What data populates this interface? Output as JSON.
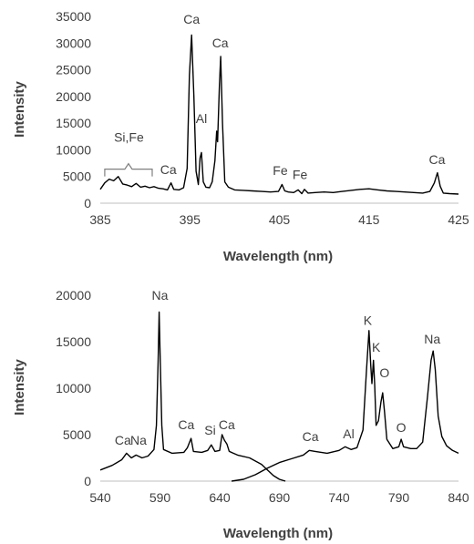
{
  "chart_data": [
    {
      "type": "line",
      "title": "",
      "xlabel": "Wavelength (nm)",
      "ylabel": "Intensity",
      "xlim": [
        385,
        425
      ],
      "ylim": [
        0,
        35000
      ],
      "xticks": [
        "385",
        "395",
        "405",
        "415",
        "425"
      ],
      "yticks": [
        "0",
        "5000",
        "10000",
        "15000",
        "20000",
        "25000",
        "30000",
        "35000"
      ],
      "grid": false,
      "series": [
        {
          "points": [
            [
              385,
              2600
            ],
            [
              385.5,
              3800
            ],
            [
              386,
              4500
            ],
            [
              386.5,
              4200
            ],
            [
              387,
              5000
            ],
            [
              387.5,
              3600
            ],
            [
              388,
              3400
            ],
            [
              388.5,
              3100
            ],
            [
              389,
              3700
            ],
            [
              389.5,
              3000
            ],
            [
              390,
              3200
            ],
            [
              390.5,
              2900
            ],
            [
              391,
              3100
            ],
            [
              391.5,
              2800
            ],
            [
              392,
              2700
            ],
            [
              392.5,
              2500
            ],
            [
              392.9,
              3800
            ],
            [
              393.2,
              2600
            ],
            [
              393.8,
              2500
            ],
            [
              394.3,
              2900
            ],
            [
              394.7,
              6500
            ],
            [
              394.95,
              24000
            ],
            [
              395.2,
              31500
            ],
            [
              395.45,
              20000
            ],
            [
              395.7,
              6000
            ],
            [
              395.95,
              3500
            ],
            [
              396.15,
              8500
            ],
            [
              396.3,
              9500
            ],
            [
              396.5,
              4000
            ],
            [
              396.8,
              3000
            ],
            [
              397.2,
              2900
            ],
            [
              397.5,
              4000
            ],
            [
              397.8,
              8000
            ],
            [
              398.0,
              13500
            ],
            [
              398.1,
              11500
            ],
            [
              398.3,
              22000
            ],
            [
              398.45,
              27500
            ],
            [
              398.65,
              15000
            ],
            [
              398.9,
              4000
            ],
            [
              399.3,
              3000
            ],
            [
              400,
              2500
            ],
            [
              401,
              2400
            ],
            [
              402,
              2300
            ],
            [
              403,
              2200
            ],
            [
              404,
              2100
            ],
            [
              404.9,
              2200
            ],
            [
              405.3,
              3500
            ],
            [
              405.6,
              2300
            ],
            [
              406,
              2100
            ],
            [
              406.6,
              2000
            ],
            [
              407.1,
              2500
            ],
            [
              407.5,
              1800
            ],
            [
              407.8,
              2600
            ],
            [
              408.2,
              1900
            ],
            [
              409,
              2000
            ],
            [
              410,
              2100
            ],
            [
              411,
              2000
            ],
            [
              412,
              2200
            ],
            [
              413,
              2400
            ],
            [
              414,
              2600
            ],
            [
              415,
              2700
            ],
            [
              416,
              2500
            ],
            [
              417,
              2300
            ],
            [
              418,
              2200
            ],
            [
              419,
              2100
            ],
            [
              420,
              2000
            ],
            [
              421,
              1900
            ],
            [
              421.8,
              2200
            ],
            [
              422.3,
              3800
            ],
            [
              422.65,
              5700
            ],
            [
              422.95,
              3200
            ],
            [
              423.3,
              1900
            ],
            [
              424,
              1800
            ],
            [
              425,
              1700
            ]
          ]
        }
      ],
      "annotations": [
        {
          "text": "Si,Fe",
          "x": 388.2,
          "y": 11500,
          "bracket": [
            385.5,
            390.8
          ]
        },
        {
          "text": "Ca",
          "x": 392.6,
          "y": 5500
        },
        {
          "text": "Ca",
          "x": 395.2,
          "y": 33600
        },
        {
          "text": "Al",
          "x": 396.3,
          "y": 15000
        },
        {
          "text": "Ca",
          "x": 398.4,
          "y": 29200
        },
        {
          "text": "Fe",
          "x": 405.1,
          "y": 5300
        },
        {
          "text": "Fe",
          "x": 407.3,
          "y": 4500
        },
        {
          "text": "Ca",
          "x": 422.6,
          "y": 7300
        }
      ]
    },
    {
      "type": "line",
      "title": "",
      "xlabel": "Wavelength (nm)",
      "ylabel": "Intensity",
      "xlim": [
        540,
        840
      ],
      "ylim": [
        0,
        20000
      ],
      "xticks": [
        "540",
        "590",
        "640",
        "690",
        "740",
        "790",
        "840"
      ],
      "yticks": [
        "0",
        "5000",
        "10000",
        "15000",
        "20000"
      ],
      "grid": false,
      "series": [
        {
          "points": [
            [
              540,
              1200
            ],
            [
              550,
              1700
            ],
            [
              558,
              2300
            ],
            [
              562,
              3000
            ],
            [
              566,
              2500
            ],
            [
              570,
              2800
            ],
            [
              575,
              2500
            ],
            [
              580,
              2700
            ],
            [
              585,
              3400
            ],
            [
              587,
              6000
            ],
            [
              588.5,
              13000
            ],
            [
              589.3,
              18200
            ],
            [
              590.2,
              13000
            ],
            [
              591.5,
              6000
            ],
            [
              593,
              3400
            ],
            [
              600,
              3000
            ],
            [
              610,
              3100
            ],
            [
              613,
              3600
            ],
            [
              616,
              4600
            ],
            [
              618,
              3200
            ],
            [
              625,
              3100
            ],
            [
              630,
              3300
            ],
            [
              633,
              3900
            ],
            [
              636,
              3200
            ],
            [
              640,
              3300
            ],
            [
              642,
              5000
            ],
            [
              644,
              4400
            ],
            [
              646,
              4000
            ],
            [
              648,
              3200
            ],
            [
              655,
              2800
            ],
            [
              665,
              2500
            ],
            [
              675,
              1800
            ],
            [
              685,
              600
            ],
            [
              690,
              200
            ],
            [
              695,
              0
            ]
          ]
        },
        {
          "points": [
            [
              650,
              0
            ],
            [
              660,
              200
            ],
            [
              670,
              700
            ],
            [
              680,
              1400
            ],
            [
              690,
              2000
            ],
            [
              700,
              2400
            ],
            [
              710,
              2800
            ],
            [
              715,
              3300
            ],
            [
              720,
              3200
            ],
            [
              730,
              3000
            ],
            [
              740,
              3300
            ],
            [
              745,
              3700
            ],
            [
              750,
              3400
            ],
            [
              755,
              3600
            ],
            [
              760,
              5500
            ],
            [
              763,
              12000
            ],
            [
              765,
              16200
            ],
            [
              766.5,
              12500
            ],
            [
              767.5,
              10500
            ],
            [
              768.8,
              13000
            ],
            [
              769.8,
              10500
            ],
            [
              771,
              6000
            ],
            [
              773,
              6500
            ],
            [
              775,
              8500
            ],
            [
              776.5,
              9500
            ],
            [
              778,
              7500
            ],
            [
              780,
              4500
            ],
            [
              785,
              3500
            ],
            [
              790,
              3700
            ],
            [
              792,
              4500
            ],
            [
              794,
              3700
            ],
            [
              800,
              3500
            ],
            [
              805,
              3500
            ],
            [
              810,
              4200
            ],
            [
              814,
              9000
            ],
            [
              817,
              13000
            ],
            [
              818.8,
              14000
            ],
            [
              820.5,
              12000
            ],
            [
              823,
              7000
            ],
            [
              826,
              4800
            ],
            [
              830,
              3800
            ],
            [
              835,
              3300
            ],
            [
              840,
              3000
            ]
          ]
        }
      ],
      "annotations": [
        {
          "text": "Ca",
          "x": 559,
          "y": 3900
        },
        {
          "text": "Na",
          "x": 572,
          "y": 3900
        },
        {
          "text": "Na",
          "x": 590,
          "y": 19500
        },
        {
          "text": "Ca",
          "x": 612,
          "y": 5600
        },
        {
          "text": "Si",
          "x": 632,
          "y": 5000
        },
        {
          "text": "Ca",
          "x": 646,
          "y": 5600
        },
        {
          "text": "Ca",
          "x": 716,
          "y": 4300
        },
        {
          "text": "Al",
          "x": 748,
          "y": 4600
        },
        {
          "text": "K",
          "x": 764,
          "y": 16800
        },
        {
          "text": "K",
          "x": 771,
          "y": 13900
        },
        {
          "text": "O",
          "x": 778,
          "y": 11200
        },
        {
          "text": "O",
          "x": 792,
          "y": 5300
        },
        {
          "text": "Na",
          "x": 818,
          "y": 14800
        }
      ]
    }
  ]
}
